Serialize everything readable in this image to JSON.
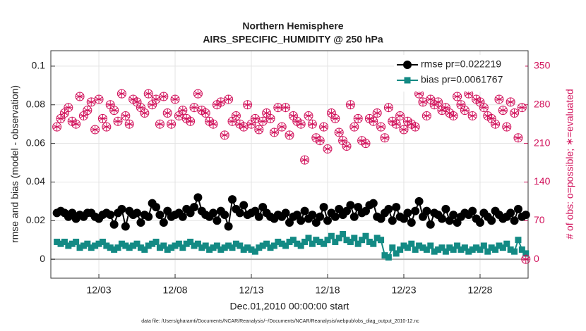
{
  "chart_data": {
    "type": "line",
    "title": [
      "Northern Hemisphere",
      "AIRS_SPECIFIC_HUMIDITY @ 250 hPa"
    ],
    "xlabel": "Dec.01,2010 00:00:00 start",
    "ylabel": "rmse and bias (model - observation)",
    "y2label": "# of obs: o=possible; ∗=evaluated",
    "footnote": "data file: /Users/gharamti/Documents/NCAR/Reanalysis/~/Documents/NCAR/Reanalysis/webpub/obs_diag_output_2010-12.nc",
    "grid": true,
    "legend": "upper right",
    "xlim": [
      -0.15,
      31.15
    ],
    "xticks": [
      {
        "value": 3,
        "label": "12/03"
      },
      {
        "value": 8,
        "label": "12/08"
      },
      {
        "value": 13,
        "label": "12/13"
      },
      {
        "value": 18,
        "label": "12/18"
      },
      {
        "value": 23,
        "label": "12/23"
      },
      {
        "value": 28,
        "label": "12/28"
      }
    ],
    "ylim": [
      -0.0098,
      0.108
    ],
    "yticks": [
      0,
      0.02,
      0.04,
      0.06,
      0.08,
      {
        "value": 0.1,
        "label": "0.1"
      }
    ],
    "y2lim": [
      -34.3,
      378
    ],
    "y2ticks": [
      0,
      70,
      140,
      210,
      280,
      350
    ],
    "x": [
      0.25,
      0.5,
      0.75,
      1,
      1.25,
      1.5,
      1.75,
      2,
      2.25,
      2.5,
      2.75,
      3,
      3.25,
      3.5,
      3.75,
      4,
      4.25,
      4.5,
      4.75,
      5,
      5.25,
      5.5,
      5.75,
      6,
      6.25,
      6.5,
      6.75,
      7,
      7.25,
      7.5,
      7.75,
      8,
      8.25,
      8.5,
      8.75,
      9,
      9.25,
      9.5,
      9.75,
      10,
      10.25,
      10.5,
      10.75,
      11,
      11.25,
      11.5,
      11.75,
      12,
      12.25,
      12.5,
      12.75,
      13,
      13.25,
      13.5,
      13.75,
      14,
      14.25,
      14.5,
      14.75,
      15,
      15.25,
      15.5,
      15.75,
      16,
      16.25,
      16.5,
      16.75,
      17,
      17.25,
      17.5,
      17.75,
      18,
      18.25,
      18.5,
      18.75,
      19,
      19.25,
      19.5,
      19.75,
      20,
      20.25,
      20.5,
      20.75,
      21,
      21.25,
      21.5,
      21.75,
      22,
      22.25,
      22.5,
      22.75,
      23,
      23.25,
      23.5,
      23.75,
      24,
      24.25,
      24.5,
      24.75,
      25,
      25.25,
      25.5,
      25.75,
      26,
      26.25,
      26.5,
      26.75,
      27,
      27.25,
      27.5,
      27.75,
      28,
      28.25,
      28.5,
      28.75,
      29,
      29.25,
      29.5,
      29.75,
      30,
      30.25,
      30.5,
      30.75,
      31
    ],
    "series": [
      {
        "name": "rmse pr=0.022219",
        "color": "#000000",
        "marker": "circle",
        "values": [
          0.024,
          0.025,
          0.024,
          0.022,
          0.024,
          0.021,
          0.023,
          0.022,
          0.024,
          0.024,
          0.022,
          0.021,
          0.023,
          0.024,
          0.023,
          0.018,
          0.024,
          0.026,
          0.017,
          0.025,
          0.023,
          0.024,
          0.019,
          0.023,
          0.022,
          0.029,
          0.027,
          0.023,
          0.019,
          0.025,
          0.022,
          0.023,
          0.024,
          0.022,
          0.026,
          0.024,
          0.027,
          0.032,
          0.025,
          0.023,
          0.022,
          0.024,
          0.02,
          0.025,
          0.023,
          0.017,
          0.031,
          0.026,
          0.024,
          0.028,
          0.023,
          0.024,
          0.025,
          0.022,
          0.027,
          0.024,
          0.022,
          0.021,
          0.023,
          0.022,
          0.024,
          0.019,
          0.022,
          0.023,
          0.02,
          0.025,
          0.021,
          0.023,
          0.019,
          0.022,
          0.027,
          0.02,
          0.024,
          0.022,
          0.026,
          0.023,
          0.025,
          0.028,
          0.022,
          0.027,
          0.024,
          0.025,
          0.028,
          0.029,
          0.022,
          0.021,
          0.024,
          0.026,
          0.02,
          0.027,
          0.022,
          0.021,
          0.024,
          0.019,
          0.025,
          0.03,
          0.022,
          0.025,
          0.018,
          0.024,
          0.023,
          0.021,
          0.026,
          0.02,
          0.023,
          0.019,
          0.022,
          0.024,
          0.023,
          0.025,
          0.021,
          0.019,
          0.024,
          0.022,
          0.02,
          0.025,
          0.023,
          0.021,
          0.022,
          0.024,
          0.02,
          0.026,
          0.022,
          0.023
        ]
      },
      {
        "name": "bias pr=0.0061767",
        "color": "#138a84",
        "marker": "square",
        "values": [
          0.009,
          0.008,
          0.009,
          0.007,
          0.008,
          0.009,
          0.006,
          0.007,
          0.008,
          0.006,
          0.007,
          0.008,
          0.009,
          0.007,
          0.006,
          0.005,
          0.006,
          0.008,
          0.007,
          0.006,
          0.007,
          0.008,
          0.006,
          0.005,
          0.007,
          0.008,
          0.009,
          0.006,
          0.007,
          0.005,
          0.006,
          0.007,
          0.008,
          0.006,
          0.008,
          0.009,
          0.007,
          0.008,
          0.006,
          0.007,
          0.005,
          0.006,
          0.007,
          0.005,
          0.006,
          0.007,
          0.006,
          0.008,
          0.007,
          0.005,
          0.006,
          0.005,
          0.004,
          0.006,
          0.007,
          0.008,
          0.006,
          0.007,
          0.009,
          0.008,
          0.007,
          0.009,
          0.01,
          0.008,
          0.007,
          0.009,
          0.011,
          0.008,
          0.01,
          0.009,
          0.008,
          0.01,
          0.012,
          0.009,
          0.011,
          0.013,
          0.01,
          0.009,
          0.011,
          0.008,
          0.01,
          0.012,
          0.009,
          0.008,
          0.011,
          0.01,
          0.002,
          0.001,
          0.006,
          0.003,
          0.005,
          0.007,
          0.006,
          0.008,
          0.005,
          0.007,
          0.006,
          0.005,
          0.007,
          0.004,
          0.005,
          0.006,
          0.004,
          0.006,
          0.005,
          0.007,
          0.005,
          0.006,
          0.004,
          0.005,
          0.006,
          0.005,
          0.007,
          0.004,
          0.006,
          0.005,
          0.007,
          0.006,
          0.008,
          0.005,
          0.004,
          0.01,
          0.005,
          0.003
        ]
      },
      {
        "color": "#d1105a",
        "marker": "circle-asterisk",
        "axis": "y2",
        "values": [
          240,
          255,
          265,
          275,
          250,
          245,
          295,
          260,
          270,
          285,
          235,
          290,
          255,
          240,
          280,
          270,
          250,
          300,
          260,
          245,
          290,
          285,
          275,
          265,
          300,
          280,
          290,
          245,
          295,
          265,
          245,
          290,
          260,
          270,
          255,
          250,
          275,
          300,
          270,
          265,
          250,
          245,
          280,
          285,
          225,
          290,
          250,
          260,
          245,
          240,
          280,
          245,
          255,
          235,
          250,
          265,
          255,
          230,
          275,
          240,
          275,
          225,
          260,
          250,
          245,
          180,
          260,
          245,
          220,
          215,
          240,
          200,
          265,
          255,
          230,
          215,
          205,
          280,
          240,
          255,
          215,
          210,
          255,
          250,
          265,
          240,
          220,
          275,
          250,
          245,
          260,
          235,
          250,
          245,
          240,
          300,
          285,
          260,
          290,
          280,
          285,
          270,
          275,
          265,
          260,
          295,
          280,
          270,
          300,
          260,
          290,
          285,
          275,
          260,
          255,
          245,
          290,
          270,
          240,
          285,
          265,
          220,
          275,
          0
        ]
      }
    ]
  }
}
